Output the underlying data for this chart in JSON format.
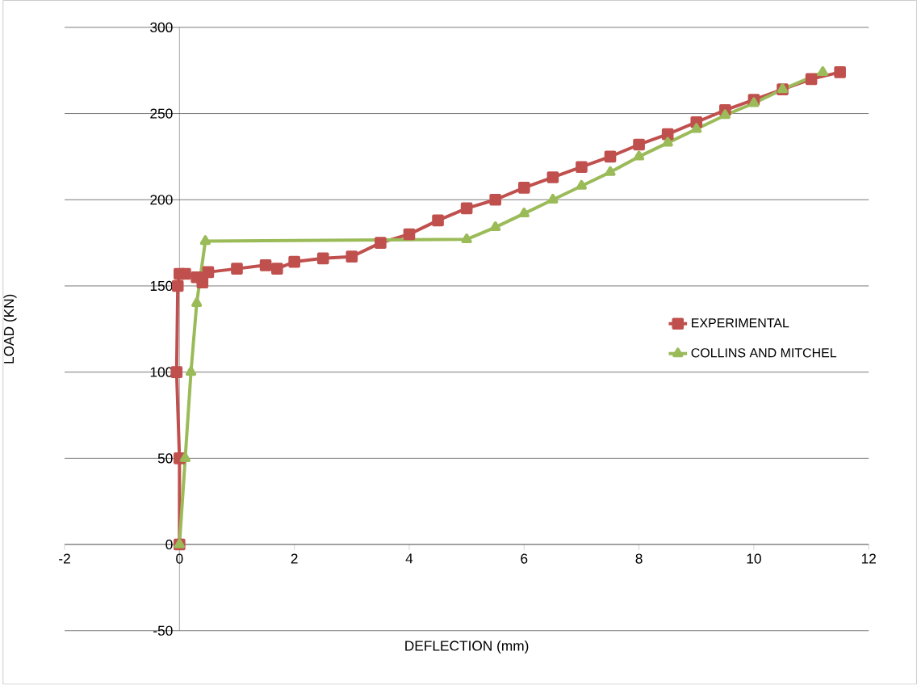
{
  "chart_data": {
    "type": "line",
    "xlabel": "DEFLECTION (mm)",
    "ylabel": "LOAD (KN)",
    "xlim": [
      -2,
      12
    ],
    "ylim": [
      -50,
      300
    ],
    "xticks": [
      -2,
      0,
      2,
      4,
      6,
      8,
      10,
      12
    ],
    "yticks": [
      -50,
      0,
      50,
      100,
      150,
      200,
      250,
      300
    ],
    "grid": "y",
    "legend": "right",
    "line_style": "solid",
    "series": [
      {
        "name": "EXPERIMENTAL",
        "color": "#c0504d",
        "marker": "square",
        "x": [
          0,
          0.0,
          -0.05,
          -0.03,
          0,
          0.1,
          0.3,
          0.4,
          0.5,
          1,
          1.5,
          1.7,
          2,
          2.5,
          3,
          3.5,
          4,
          4.5,
          5,
          5.5,
          6,
          6.5,
          7,
          7.5,
          8,
          8.5,
          9,
          9.5,
          10,
          10.5,
          11,
          11.5
        ],
        "values": [
          0,
          50,
          100,
          150,
          157,
          157,
          155,
          152,
          158,
          160,
          162,
          160,
          164,
          166,
          167,
          175,
          180,
          188,
          195,
          200,
          207,
          213,
          219,
          225,
          232,
          238,
          245,
          252,
          258,
          264,
          270,
          274
        ]
      },
      {
        "name": "COLLINS AND MITCHEL",
        "color": "#9bbb59",
        "marker": "triangle",
        "x": [
          0,
          0.1,
          0.2,
          0.3,
          0.45,
          5,
          5.5,
          6,
          6.5,
          7,
          7.5,
          8,
          8.5,
          9,
          9.5,
          10,
          10.5,
          11.2
        ],
        "values": [
          0,
          50,
          100,
          140,
          176,
          177,
          184,
          192,
          200,
          208,
          216,
          225,
          233,
          241,
          249,
          256,
          264,
          274
        ]
      }
    ]
  }
}
